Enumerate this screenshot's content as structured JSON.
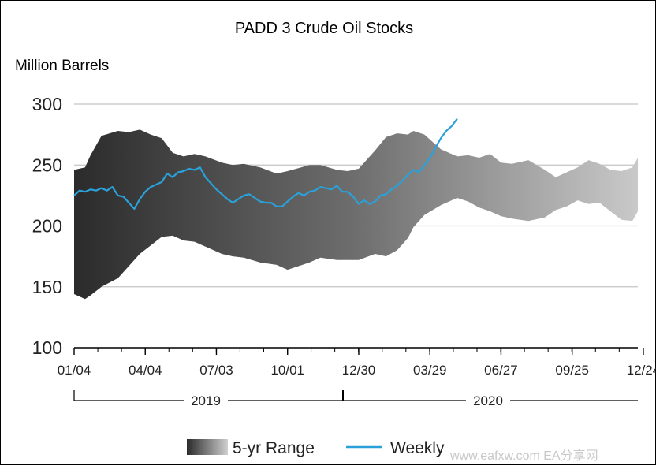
{
  "chart_data": {
    "type": "area",
    "title": "PADD 3 Crude Oil Stocks",
    "ylabel": "Million Barrels",
    "ylim": [
      100,
      300
    ],
    "yticks": [
      100,
      150,
      200,
      250,
      300
    ],
    "grid": true,
    "x_tick_labels": [
      "01/04",
      "04/04",
      "07/03",
      "10/01",
      "12/30",
      "03/29",
      "06/27",
      "09/25",
      "12/24"
    ],
    "year_labels": [
      "2019",
      "2020"
    ],
    "x_unit": "weeks since 01/04/2019",
    "x_max": 103,
    "legend": {
      "placement": "bottom-center",
      "entries": [
        "5-yr Range",
        "Weekly"
      ]
    },
    "series": [
      {
        "name": "5-yr Range",
        "kind": "band",
        "x": [
          0,
          2,
          3,
          5,
          8,
          10,
          12,
          14,
          16,
          18,
          20,
          22,
          24,
          27,
          29,
          31,
          34,
          37,
          39,
          43,
          45,
          48,
          50,
          52,
          55,
          57,
          59,
          61,
          62,
          64,
          67,
          70,
          72,
          74,
          76,
          78,
          80,
          83,
          86,
          88,
          90,
          92,
          94,
          96,
          98,
          100,
          102,
          103
        ],
        "high": [
          246,
          248,
          258,
          274,
          278,
          277,
          279,
          275,
          272,
          260,
          257,
          259,
          257,
          252,
          250,
          251,
          248,
          243,
          245,
          250,
          250,
          246,
          245,
          247,
          262,
          273,
          276,
          275,
          278,
          275,
          263,
          257,
          258,
          256,
          259,
          252,
          251,
          254,
          246,
          240,
          244,
          248,
          254,
          251,
          246,
          245,
          248,
          256
        ],
        "low": [
          144,
          140,
          143,
          150,
          157,
          167,
          177,
          184,
          191,
          192,
          188,
          187,
          183,
          177,
          175,
          174,
          170,
          168,
          164,
          170,
          174,
          172,
          172,
          172,
          177,
          175,
          180,
          190,
          199,
          209,
          217,
          223,
          220,
          215,
          212,
          208,
          206,
          204,
          207,
          213,
          216,
          221,
          218,
          219,
          212,
          205,
          204,
          212
        ]
      },
      {
        "name": "Weekly",
        "kind": "line",
        "color": "#2aa1d8",
        "x": [
          0,
          1,
          2,
          3,
          4,
          5,
          6,
          7,
          8,
          9,
          10,
          11,
          12,
          13,
          14,
          15,
          16,
          17,
          18,
          19,
          20,
          21,
          22,
          23,
          24,
          25,
          26,
          27,
          28,
          29,
          30,
          31,
          32,
          33,
          34,
          35,
          36,
          37,
          38,
          39,
          40,
          41,
          42,
          43,
          44,
          45,
          46,
          47,
          48,
          49,
          50,
          51,
          52,
          53,
          54,
          55,
          56,
          57,
          58,
          59,
          60,
          61,
          62,
          63,
          64,
          65,
          66,
          67,
          68,
          69,
          70
        ],
        "y": [
          225,
          229,
          228,
          230,
          229,
          231,
          229,
          232,
          225,
          224,
          219,
          214,
          222,
          228,
          232,
          234,
          236,
          243,
          240,
          244,
          245,
          247,
          246,
          248,
          240,
          235,
          230,
          226,
          222,
          219,
          222,
          225,
          226,
          223,
          220,
          219,
          219,
          216,
          216,
          220,
          224,
          227,
          225,
          228,
          229,
          232,
          231,
          230,
          233,
          228,
          228,
          224,
          218,
          221,
          218,
          220,
          225,
          226,
          230,
          233,
          237,
          242,
          246,
          244,
          250,
          256,
          264,
          272,
          278,
          282,
          288
        ]
      }
    ]
  },
  "watermark": "www.eafxw.com EA分享网"
}
